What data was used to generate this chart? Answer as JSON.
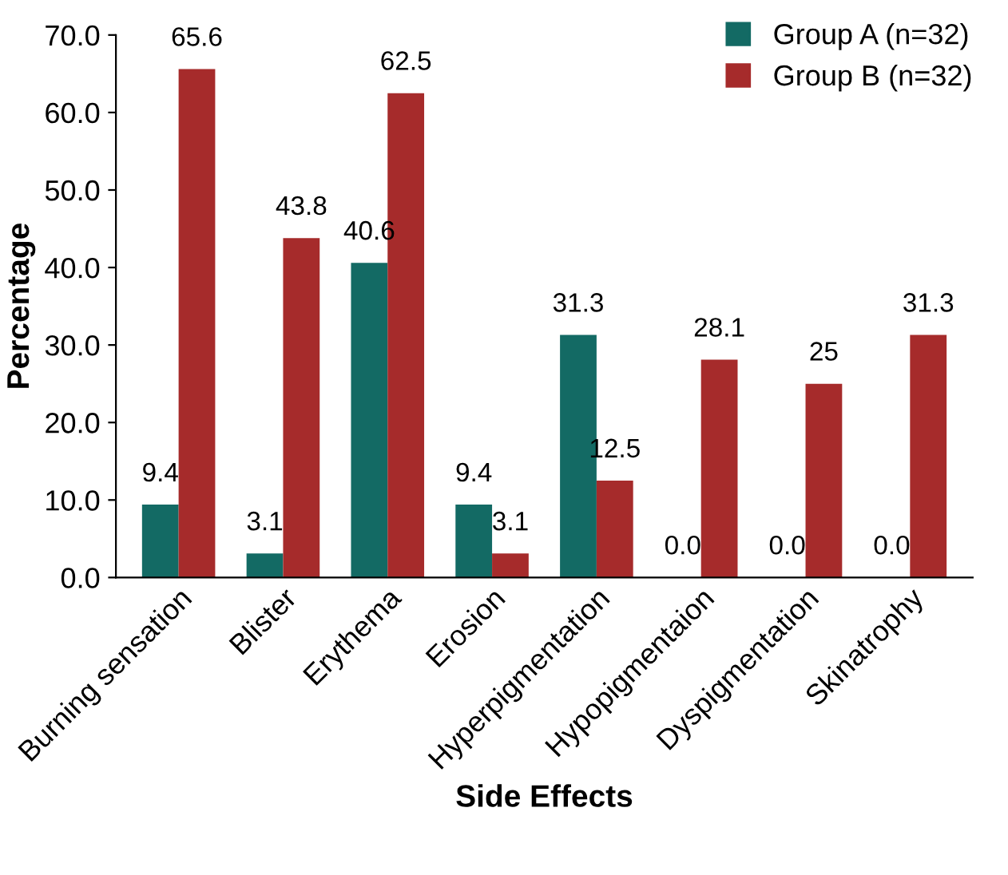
{
  "chart_data": {
    "type": "bar",
    "xlabel": "Side Effects",
    "ylabel": "Percentage",
    "categories": [
      "Burning sensation",
      "Blister",
      "Erythema",
      "Erosion",
      "Hyperpigmentation",
      "Hypopigmentaion",
      "Dyspigmentation",
      "Skinatrophy"
    ],
    "series": [
      {
        "name": "Group A (n=32)",
        "color": "#136a64",
        "values": [
          9.4,
          3.1,
          40.6,
          9.4,
          31.3,
          0.0,
          0.0,
          0.0
        ],
        "value_labels": [
          "9.4",
          "3.1",
          "40.6",
          "9.4",
          "31.3",
          "0.0",
          "0.0",
          "0.0"
        ]
      },
      {
        "name": "Group B (n=32)",
        "color": "#a62b2b",
        "values": [
          65.6,
          43.8,
          62.5,
          3.1,
          12.5,
          28.1,
          25,
          31.3
        ],
        "value_labels": [
          "65.6",
          "43.8",
          "62.5",
          "3.1",
          "12.5",
          "28.1",
          "25",
          "31.3"
        ]
      }
    ],
    "ylim": [
      0,
      70
    ],
    "yticks": [
      {
        "value": 0,
        "label": "0.0"
      },
      {
        "value": 10,
        "label": "10.0"
      },
      {
        "value": 20,
        "label": "20.0"
      },
      {
        "value": 30,
        "label": "30.0"
      },
      {
        "value": 40,
        "label": "40.0"
      },
      {
        "value": 50,
        "label": "50.0"
      },
      {
        "value": 60,
        "label": "60.0"
      },
      {
        "value": 70,
        "label": "70.0"
      }
    ],
    "legend": "top right"
  }
}
